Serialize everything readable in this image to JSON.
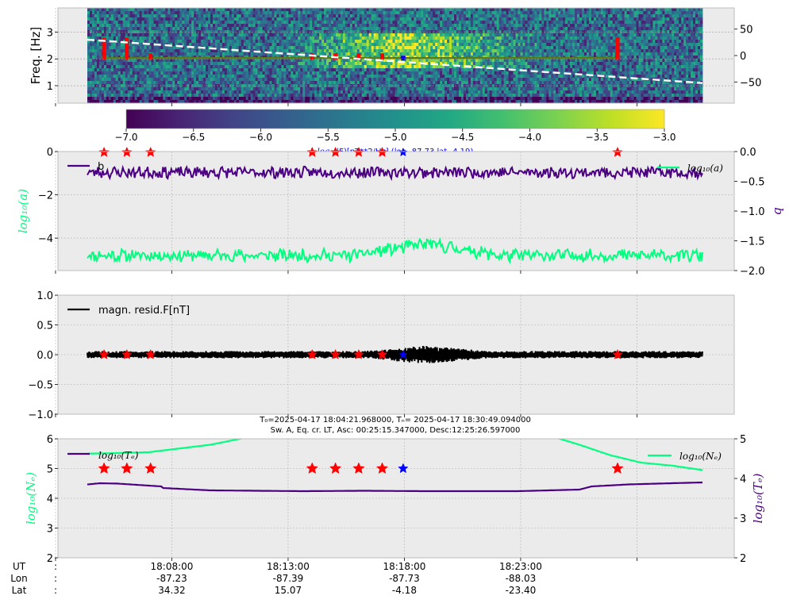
{
  "colors": {
    "panel_bg": "#ebebeb",
    "grid": "#b0b0b0",
    "a_series": "#00ff7f",
    "b_series": "#4b0082",
    "resid": "#000000",
    "event": "#ff0000",
    "ref_event": "#0000ff",
    "trend": "#ffffff",
    "freq_line": "#5a7a10"
  },
  "chart_data": [
    {
      "id": "spectrogram",
      "type": "heatmap",
      "ylabel": "Freq. [Hz]",
      "yticks": [
        "1",
        "2",
        "3"
      ],
      "ylim": [
        0.35,
        3.9
      ],
      "y2ticks": [
        "50",
        "0",
        "−50"
      ],
      "y2lim": [
        -90,
        90
      ],
      "trend_line": {
        "y2_start": 30,
        "y2_end": -52
      },
      "event_freq": 2.03,
      "colorbar": {
        "ticks": [
          "−7.0",
          "−6.5",
          "−6.0",
          "−5.5",
          "−5.0",
          "−4.5",
          "−4.0",
          "−3.5",
          "−3.0"
        ],
        "range": [
          -7.0,
          -3.0
        ],
        "label_math": "log₁₀",
        "label_rest": "(F)[nT**2/Hz] (lon -87.73 lat -4.19)"
      },
      "colormap": [
        "#440154",
        "#482475",
        "#414487",
        "#355f8d",
        "#2a788e",
        "#21918c",
        "#22a884",
        "#44bf70",
        "#7ad151",
        "#bddf26",
        "#fde725"
      ]
    },
    {
      "id": "fit_params",
      "type": "line",
      "ylabel": "log₁₀(a)",
      "y2label": "b",
      "yticks": [
        "0",
        "−2",
        "−4"
      ],
      "ylim": [
        -5.5,
        0
      ],
      "y2ticks": [
        "0.0",
        "−0.5",
        "−1.0",
        "−1.5",
        "−2.0"
      ],
      "y2lim": [
        -2.0,
        0.0
      ],
      "series": [
        {
          "name": "b",
          "axis": "right",
          "mean": -0.35,
          "noise": 0.06
        },
        {
          "name": "log₁₀(a)",
          "axis": "left",
          "mean": -4.8,
          "noise": 0.15
        }
      ]
    },
    {
      "id": "residual",
      "type": "line",
      "yticks": [
        "1.0",
        "0.5",
        "0.0",
        "−0.5",
        "−1.0"
      ],
      "ylim": [
        -1.0,
        1.0
      ],
      "series": [
        {
          "name": "magn. resid.F[nT]",
          "amplitude": 0.05
        }
      ]
    },
    {
      "id": "plasma",
      "type": "line",
      "header_line1": "T₀=2025-04-17 18:04:21.968000, Tₙ= 2025-04-17 18:30:49.094000",
      "header_line2": "Sw. A, Eq. cr. LT, Asc: 00:25:15.347000, Desc:12:25:26.597000",
      "ylabel": "log₁₀(Nₑ)",
      "y2label": "log₁₀(Tₑ)",
      "yticks": [
        "6",
        "5",
        "4",
        "3",
        "2"
      ],
      "ylim": [
        2,
        6
      ],
      "y2ticks": [
        "5",
        "4",
        "3",
        "2"
      ],
      "y2lim": [
        2,
        5
      ],
      "series": [
        {
          "name": "log₁₀(Tₑ)",
          "axis": "right",
          "t": [
            0,
            0.02,
            0.05,
            0.12,
            0.122,
            0.2,
            0.35,
            0.45,
            0.55,
            0.7,
            0.8,
            0.82,
            0.88,
            0.95,
            1.0
          ],
          "values": [
            3.85,
            3.88,
            3.87,
            3.8,
            3.76,
            3.7,
            3.68,
            3.69,
            3.68,
            3.68,
            3.72,
            3.8,
            3.85,
            3.88,
            3.9
          ]
        },
        {
          "name": "log₁₀(Nₑ)",
          "axis": "left",
          "t": [
            0,
            0.05,
            0.1,
            0.14,
            0.2,
            0.26,
            0.32,
            0.4,
            0.5,
            0.6,
            0.7,
            0.76,
            0.8,
            0.85,
            0.9,
            0.95,
            1.0
          ],
          "values": [
            5.5,
            5.52,
            5.55,
            5.65,
            5.8,
            6.05,
            6.3,
            6.5,
            6.6,
            6.5,
            6.3,
            6.05,
            5.8,
            5.45,
            5.2,
            5.1,
            4.95
          ]
        }
      ]
    }
  ],
  "time_axis": {
    "t0": "18:04:21.968",
    "tn": "18:30:49.094",
    "row_labels": [
      "UT",
      "Lon",
      "Lat"
    ],
    "row_colons": [
      ":",
      ":",
      ":"
    ],
    "ticks": [
      {
        "minute_offset": 3.6339,
        "ut": "18:08:00",
        "lon": "-87.23",
        "lat": "34.32"
      },
      {
        "minute_offset": 8.6339,
        "ut": "18:13:00",
        "lon": "-87.39",
        "lat": "15.07"
      },
      {
        "minute_offset": 13.6339,
        "ut": "18:18:00",
        "lon": "-87.73",
        "lat": "-4.18"
      },
      {
        "minute_offset": 18.6339,
        "ut": "18:23:00",
        "lon": "-88.03",
        "lat": "-23.40"
      }
    ],
    "extra_ticks_minutes": [
      -1.3661,
      23.6339
    ],
    "span_minutes": 26.4521
  },
  "events": {
    "red_minutes": [
      0.72,
      1.7,
      2.72,
      9.67,
      10.67,
      11.67,
      12.68,
      22.8
    ],
    "blue_minute": 13.58
  }
}
